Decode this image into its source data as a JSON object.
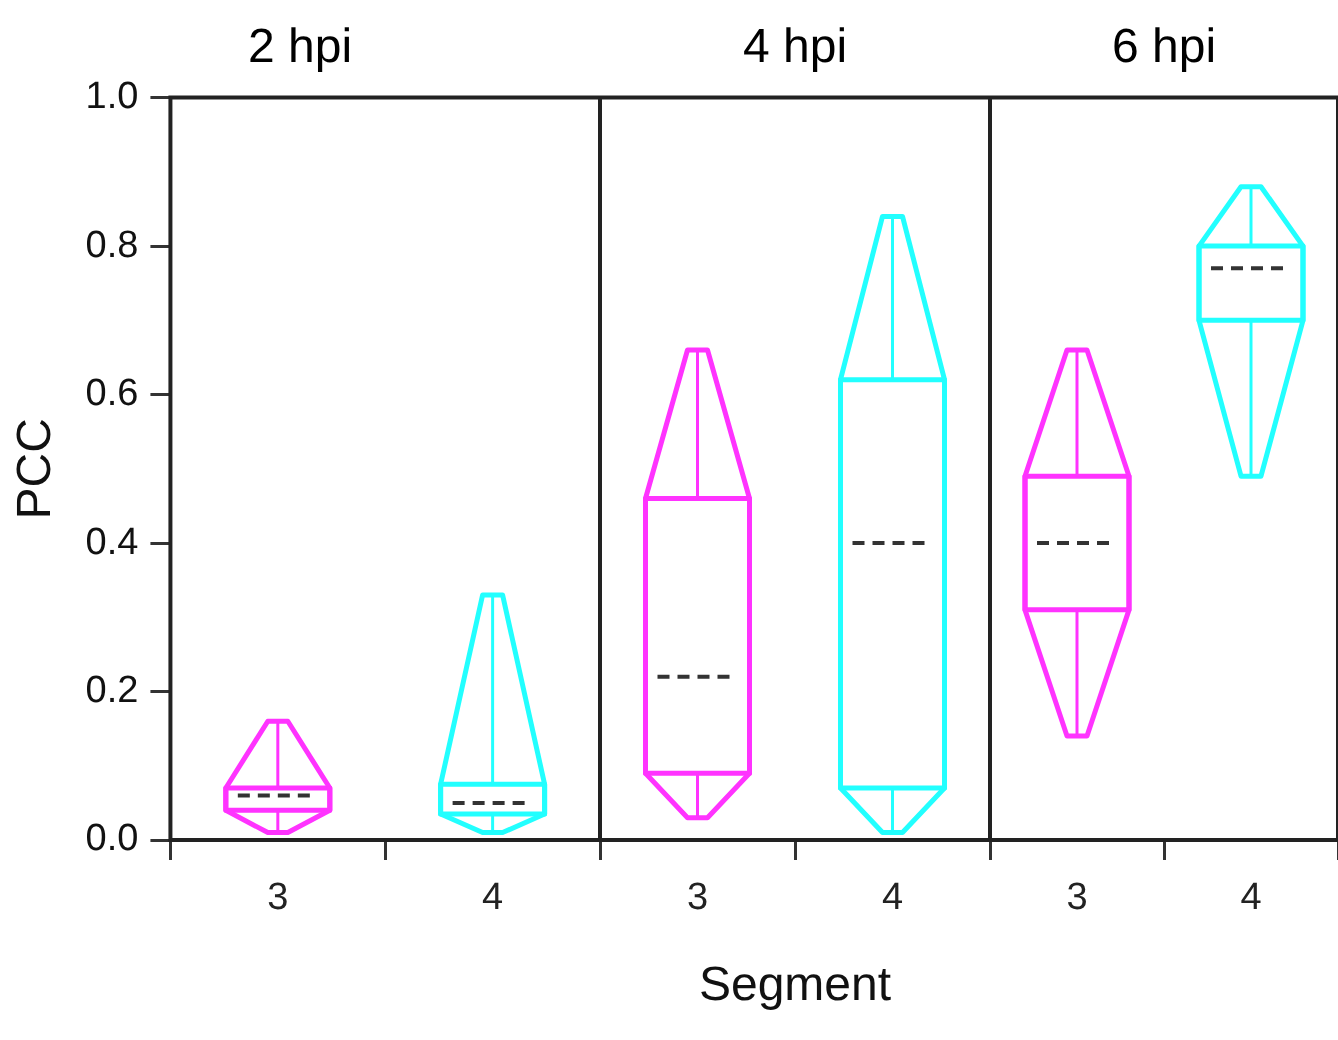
{
  "chart_data": [
    {
      "type": "box",
      "title": "2 hpi",
      "ylabel": "PCC",
      "categories": [
        "3",
        "4"
      ],
      "colors": [
        "#ff33ff",
        "#22ffff"
      ],
      "boxes": [
        {
          "low": 0.01,
          "q1": 0.04,
          "median": 0.06,
          "q3": 0.07,
          "high": 0.16
        },
        {
          "low": 0.01,
          "q1": 0.035,
          "median": 0.05,
          "q3": 0.075,
          "high": 0.33
        }
      ],
      "ylim": [
        0,
        1
      ],
      "yticks": [
        {
          "value": 0,
          "label": "0.0"
        },
        0.2,
        0.4,
        0.6,
        0.8,
        {
          "value": 1,
          "label": "1.0"
        }
      ]
    },
    {
      "type": "box",
      "title": "4 hpi",
      "xlabel": "Segment",
      "categories": [
        "3",
        "4"
      ],
      "colors": [
        "#ff33ff",
        "#22ffff"
      ],
      "boxes": [
        {
          "low": 0.03,
          "q1": 0.09,
          "median": 0.22,
          "q3": 0.46,
          "high": 0.66
        },
        {
          "low": 0.01,
          "q1": 0.07,
          "median": 0.4,
          "q3": 0.62,
          "high": 0.84
        }
      ],
      "ylim": [
        0,
        1
      ],
      "tick_labels": "x"
    },
    {
      "type": "box",
      "title": "6 hpi",
      "categories": [
        "3",
        "4"
      ],
      "colors": [
        "#ff33ff",
        "#22ffff"
      ],
      "boxes": [
        {
          "low": 0.14,
          "q1": 0.31,
          "median": 0.4,
          "q3": 0.49,
          "high": 0.66
        },
        {
          "low": 0.49,
          "q1": 0.7,
          "median": 0.77,
          "q3": 0.8,
          "high": 0.88
        }
      ],
      "ylim": [
        0,
        1
      ],
      "tick_labels": "x"
    }
  ]
}
